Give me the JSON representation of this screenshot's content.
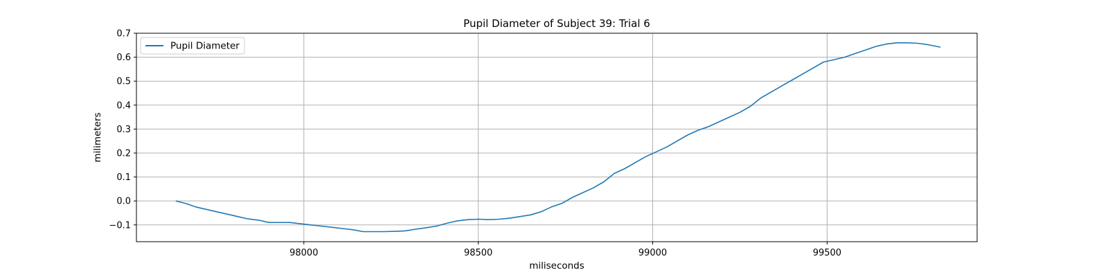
{
  "chart_data": {
    "type": "line",
    "title": "Pupil Diameter of Subject 39: Trial 6",
    "xlabel": "miliseconds",
    "ylabel": "milimeters",
    "xlim": [
      97520,
      99930
    ],
    "ylim": [
      -0.17,
      0.7
    ],
    "xticks": [
      98000,
      98500,
      99000,
      99500
    ],
    "yticks": [
      -0.1,
      0.0,
      0.1,
      0.2,
      0.3,
      0.4,
      0.5,
      0.6,
      0.7
    ],
    "ytick_labels": [
      "−0.1",
      "0.0",
      "0.1",
      "0.2",
      "0.3",
      "0.4",
      "0.5",
      "0.6",
      "0.7"
    ],
    "grid": true,
    "legend_position": "top-left",
    "colors": {
      "series": "#1f77b4",
      "grid": "#b0b0b0",
      "frame": "#000000"
    },
    "series": [
      {
        "name": "Pupil Diameter",
        "x": [
          97633,
          97660,
          97690,
          97720,
          97750,
          97780,
          97810,
          97840,
          97870,
          97900,
          97930,
          97960,
          97990,
          98020,
          98050,
          98080,
          98110,
          98140,
          98170,
          98200,
          98230,
          98260,
          98290,
          98320,
          98350,
          98380,
          98410,
          98440,
          98470,
          98500,
          98530,
          98560,
          98590,
          98620,
          98650,
          98680,
          98710,
          98740,
          98770,
          98800,
          98830,
          98860,
          98890,
          98920,
          98950,
          98980,
          99010,
          99040,
          99070,
          99100,
          99130,
          99160,
          99190,
          99220,
          99250,
          99280,
          99310,
          99340,
          99370,
          99400,
          99430,
          99460,
          99490,
          99520,
          99550,
          99580,
          99610,
          99640,
          99670,
          99700,
          99730,
          99760,
          99790,
          99825
        ],
        "y": [
          0.0,
          -0.01,
          -0.025,
          -0.035,
          -0.045,
          -0.055,
          -0.065,
          -0.075,
          -0.08,
          -0.09,
          -0.09,
          -0.09,
          -0.095,
          -0.1,
          -0.105,
          -0.11,
          -0.115,
          -0.12,
          -0.128,
          -0.128,
          -0.128,
          -0.127,
          -0.125,
          -0.118,
          -0.112,
          -0.105,
          -0.093,
          -0.083,
          -0.078,
          -0.076,
          -0.078,
          -0.076,
          -0.072,
          -0.065,
          -0.058,
          -0.045,
          -0.025,
          -0.01,
          0.015,
          0.035,
          0.055,
          0.08,
          0.115,
          0.135,
          0.16,
          0.185,
          0.205,
          0.225,
          0.25,
          0.275,
          0.295,
          0.31,
          0.33,
          0.35,
          0.37,
          0.395,
          0.43,
          0.455,
          0.48,
          0.505,
          0.53,
          0.555,
          0.58,
          0.59,
          0.6,
          0.615,
          0.63,
          0.645,
          0.655,
          0.66,
          0.66,
          0.658,
          0.652,
          0.642
        ]
      }
    ]
  }
}
